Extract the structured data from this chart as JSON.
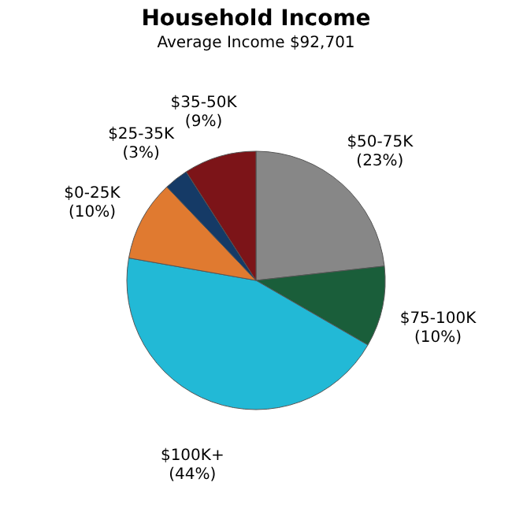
{
  "chart_data": {
    "type": "pie",
    "title": "Household Income",
    "subtitle": "Average Income  $92,701",
    "categories": [
      "$50-75K",
      "$75-100K",
      "$100K+",
      "$0-25K",
      "$25-35K",
      "$35-50K"
    ],
    "values": [
      23,
      10,
      44,
      10,
      3,
      9
    ],
    "value_labels": [
      "(23%)",
      "(10%)",
      "(44%)",
      "(10%)",
      "(3%)",
      "(9%)"
    ],
    "colors": [
      "#878787",
      "#1a5e3a",
      "#22b9d6",
      "#e07a30",
      "#153a66",
      "#7c1418"
    ],
    "legend": false
  }
}
